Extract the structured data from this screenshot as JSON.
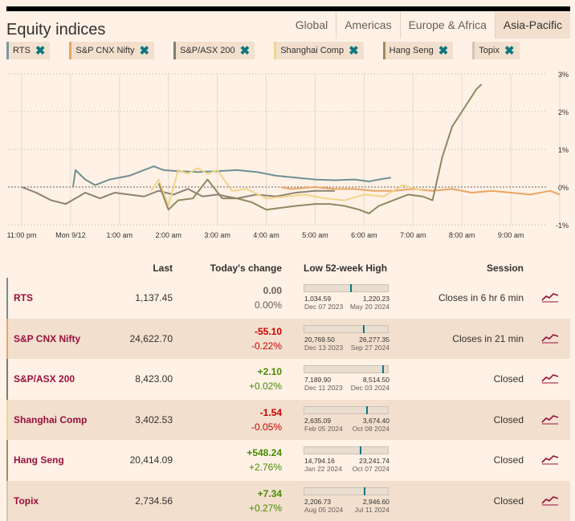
{
  "title": "Equity indices",
  "tabs": [
    {
      "label": "Global",
      "active": false
    },
    {
      "label": "Americas",
      "active": false
    },
    {
      "label": "Europe & Africa",
      "active": false
    },
    {
      "label": "Asia-Pacific",
      "active": true
    }
  ],
  "chips": [
    {
      "label": "RTS",
      "color": "#7a9aa1"
    },
    {
      "label": "S&P CNX Nifty",
      "color": "#e9a464"
    },
    {
      "label": "S&P/ASX 200",
      "color": "#807c72"
    },
    {
      "label": "Shanghai Comp",
      "color": "#f2d58a"
    },
    {
      "label": "Hang Seng",
      "color": "#9c8f5e"
    },
    {
      "label": "Topix",
      "color": "#cfc6b8"
    }
  ],
  "chart_data": {
    "type": "line",
    "x_ticks": [
      "11:00 pm",
      "Mon 9/12",
      "1:00 am",
      "2:00 am",
      "3:00 am",
      "4:00 am",
      "5:00 am",
      "6:00 am",
      "7:00 am",
      "8:00 am",
      "9:00 am"
    ],
    "y_ticks": [
      "3%",
      "2%",
      "1%",
      "0%",
      "-1%"
    ],
    "ylim": [
      -1,
      3
    ],
    "series": [
      {
        "name": "RTS",
        "color": "#6f8f94",
        "points": [
          [
            1.05,
            0
          ],
          [
            1.1,
            0.45
          ],
          [
            1.3,
            0.2
          ],
          [
            1.5,
            0.05
          ],
          [
            1.8,
            0.2
          ],
          [
            2.2,
            0.3
          ],
          [
            2.7,
            0.55
          ],
          [
            2.9,
            0.45
          ],
          [
            3.2,
            0.42
          ],
          [
            3.6,
            0.4
          ],
          [
            4.0,
            0.42
          ],
          [
            4.4,
            0.45
          ],
          [
            4.8,
            0.4
          ],
          [
            5.2,
            0.3
          ],
          [
            5.6,
            0.25
          ],
          [
            6.0,
            0.2
          ],
          [
            6.4,
            0.18
          ],
          [
            6.8,
            0.2
          ],
          [
            7.1,
            0.15
          ],
          [
            7.4,
            0.22
          ],
          [
            7.55,
            0.25
          ]
        ]
      },
      {
        "name": "S&P CNX Nifty",
        "color": "#e9a464",
        "points": [
          [
            5.3,
            0.0
          ],
          [
            5.5,
            -0.05
          ],
          [
            6.0,
            0.0
          ],
          [
            6.4,
            -0.05
          ],
          [
            6.8,
            -0.05
          ],
          [
            7.2,
            -0.1
          ],
          [
            7.6,
            -0.1
          ],
          [
            8.0,
            -0.05
          ],
          [
            8.4,
            -0.1
          ],
          [
            8.8,
            -0.05
          ],
          [
            9.2,
            -0.15
          ],
          [
            9.6,
            -0.1
          ],
          [
            10.0,
            -0.15
          ],
          [
            10.4,
            -0.2
          ],
          [
            10.8,
            -0.1
          ],
          [
            11.0,
            -0.2
          ]
        ]
      },
      {
        "name": "S&P/ASX 200",
        "color": "#8a8376",
        "points": [
          [
            0,
            0
          ],
          [
            0.3,
            -0.15
          ],
          [
            0.6,
            -0.35
          ],
          [
            0.9,
            -0.45
          ],
          [
            1.1,
            -0.3
          ],
          [
            1.3,
            -0.15
          ],
          [
            1.6,
            -0.3
          ],
          [
            1.9,
            -0.15
          ],
          [
            2.2,
            -0.2
          ],
          [
            2.5,
            -0.25
          ],
          [
            2.8,
            -0.1
          ],
          [
            3.1,
            -0.2
          ],
          [
            3.4,
            -0.05
          ],
          [
            3.7,
            -0.25
          ],
          [
            4.0,
            -0.2
          ],
          [
            4.4,
            -0.3
          ],
          [
            4.8,
            -0.2
          ],
          [
            5.2,
            -0.25
          ],
          [
            5.6,
            -0.15
          ],
          [
            6.0,
            -0.1
          ],
          [
            6.4,
            -0.1
          ]
        ]
      },
      {
        "name": "Shanghai Comp",
        "color": "#f2d58a",
        "points": [
          [
            2.65,
            -0.1
          ],
          [
            2.8,
            0.2
          ],
          [
            3.0,
            -0.5
          ],
          [
            3.2,
            0.45
          ],
          [
            3.4,
            0.35
          ],
          [
            3.6,
            0.5
          ],
          [
            3.8,
            0.35
          ],
          [
            4.0,
            0.45
          ],
          [
            4.3,
            -0.1
          ],
          [
            4.6,
            -0.05
          ],
          [
            5.0,
            -0.3
          ],
          [
            5.4,
            -0.25
          ],
          [
            5.8,
            -0.2
          ],
          [
            6.2,
            -0.3
          ],
          [
            6.6,
            -0.35
          ],
          [
            7.0,
            -0.2
          ],
          [
            7.4,
            -0.25
          ],
          [
            7.8,
            0.05
          ],
          [
            8.2,
            -0.1
          ]
        ]
      },
      {
        "name": "Hang Seng",
        "color": "#8f8961",
        "points": [
          [
            2.8,
            0.1
          ],
          [
            3.0,
            -0.6
          ],
          [
            3.2,
            -0.35
          ],
          [
            3.5,
            -0.3
          ],
          [
            3.8,
            0.2
          ],
          [
            4.1,
            -0.3
          ],
          [
            4.4,
            -0.3
          ],
          [
            4.7,
            -0.4
          ],
          [
            5.0,
            -0.6
          ],
          [
            5.3,
            -0.55
          ],
          [
            5.6,
            -0.5
          ],
          [
            6.0,
            -0.45
          ],
          [
            6.3,
            -0.45
          ],
          [
            6.6,
            -0.5
          ],
          [
            6.9,
            -0.6
          ],
          [
            7.1,
            -0.7
          ],
          [
            7.3,
            -0.5
          ],
          [
            7.6,
            -0.35
          ],
          [
            7.9,
            -0.2
          ],
          [
            8.2,
            -0.25
          ],
          [
            8.4,
            -0.35
          ],
          [
            8.6,
            0.8
          ],
          [
            8.8,
            1.6
          ],
          [
            9.0,
            2.0
          ],
          [
            9.15,
            2.3
          ],
          [
            9.3,
            2.6
          ],
          [
            9.4,
            2.72
          ]
        ]
      },
      {
        "name": "Topix",
        "color": "#cfc6b8",
        "points": []
      }
    ]
  },
  "table": {
    "headers": {
      "last": "Last",
      "change": "Today's change",
      "range": "Low 52-week High",
      "session": "Session"
    },
    "rows": [
      {
        "name": "RTS",
        "color": "#6f8f94",
        "last": "1,137.45",
        "chg": "0.00",
        "pct": "0.00%",
        "dir": "zero",
        "low": "1,034.59",
        "high": "1,220.23",
        "low_date": "Dec 07 2023",
        "high_date": "May 20 2024",
        "range_pos": 0.55,
        "session": "Closes in 6 hr 6 min"
      },
      {
        "name": "S&P CNX Nifty",
        "color": "#e9a464",
        "last": "24,622.70",
        "chg": "-55.10",
        "pct": "-0.22%",
        "dir": "neg",
        "low": "20,769.50",
        "high": "26,277.35",
        "low_date": "Dec 13 2023",
        "high_date": "Sep 27 2024",
        "range_pos": 0.7,
        "session": "Closes in 21 min"
      },
      {
        "name": "S&P/ASX 200",
        "color": "#807c72",
        "last": "8,423.00",
        "chg": "+2.10",
        "pct": "+0.02%",
        "dir": "pos",
        "low": "7,189.90",
        "high": "8,514.50",
        "low_date": "Dec 11 2023",
        "high_date": "Dec 03 2024",
        "range_pos": 0.93,
        "session": "Closed"
      },
      {
        "name": "Shanghai Comp",
        "color": "#f2d58a",
        "last": "3,402.53",
        "chg": "-1.54",
        "pct": "-0.05%",
        "dir": "neg",
        "low": "2,635.09",
        "high": "3,674.40",
        "low_date": "Feb 05 2024",
        "high_date": "Oct 08 2024",
        "range_pos": 0.74,
        "session": "Closed"
      },
      {
        "name": "Hang Seng",
        "color": "#9c8f5e",
        "last": "20,414.09",
        "chg": "+548.24",
        "pct": "+2.76%",
        "dir": "pos",
        "low": "14,794.16",
        "high": "23,241.74",
        "low_date": "Jan 22 2024",
        "high_date": "Oct 07 2024",
        "range_pos": 0.66,
        "session": "Closed"
      },
      {
        "name": "Topix",
        "color": "#cfc6b8",
        "last": "2,734.56",
        "chg": "+7.34",
        "pct": "+0.27%",
        "dir": "pos",
        "low": "2,206.73",
        "high": "2,946.60",
        "low_date": "Aug 05 2024",
        "high_date": "Jul 11 2024",
        "range_pos": 0.71,
        "session": "Closed"
      }
    ]
  }
}
